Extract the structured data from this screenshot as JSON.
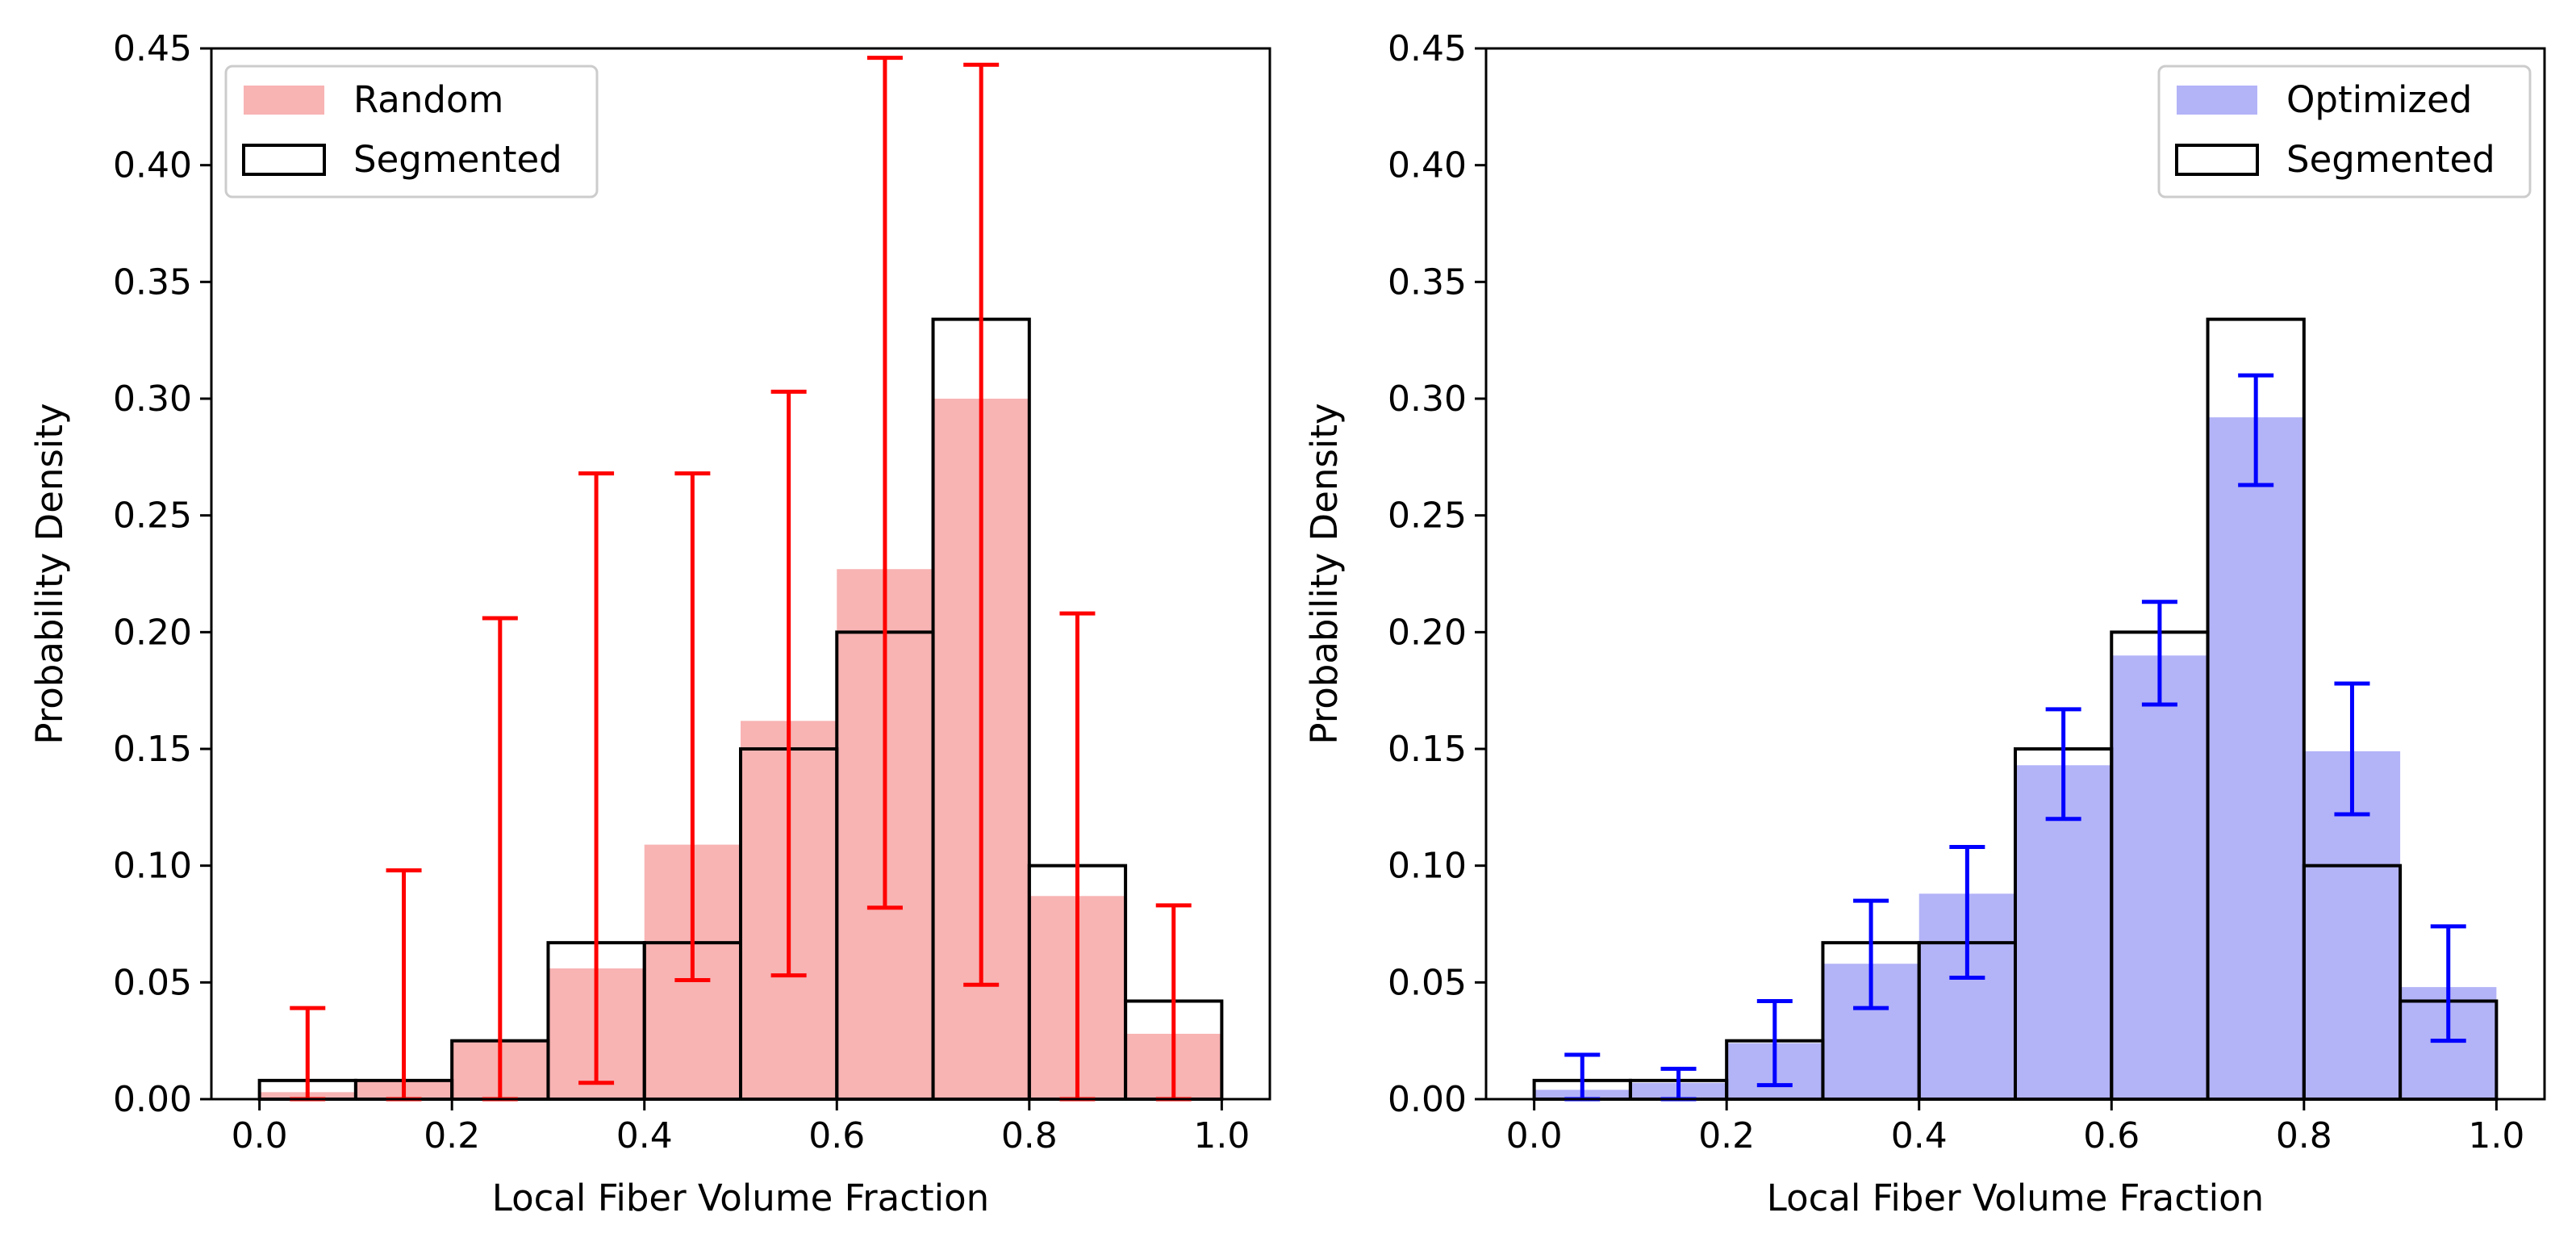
{
  "chart_data": [
    {
      "type": "bar",
      "title": "",
      "xlabel": "Local Fiber Volume Fraction",
      "ylabel": "Probability Density",
      "xlim": [
        -0.05,
        1.05
      ],
      "ylim": [
        0,
        0.45
      ],
      "x_ticks": [
        "0.0",
        "0.2",
        "0.4",
        "0.6",
        "0.8",
        "1.0"
      ],
      "y_ticks": [
        "0.00",
        "0.05",
        "0.10",
        "0.15",
        "0.20",
        "0.25",
        "0.30",
        "0.35",
        "0.40",
        "0.45"
      ],
      "grid": false,
      "legend_position": "top-left",
      "bin_edges": [
        0.0,
        0.1,
        0.2,
        0.3,
        0.4,
        0.5,
        0.6,
        0.7,
        0.8,
        0.9,
        1.0
      ],
      "series": [
        {
          "name": "Random",
          "style": "filled",
          "color": "#f8b3b3",
          "values": [
            0.003,
            0.008,
            0.025,
            0.056,
            0.109,
            0.162,
            0.227,
            0.3,
            0.087,
            0.028
          ],
          "error_color": "#ff0000",
          "error_low": [
            0.0,
            0.0,
            0.0,
            0.007,
            0.051,
            0.053,
            0.082,
            0.049,
            0.0,
            0.0
          ],
          "error_high": [
            0.039,
            0.098,
            0.206,
            0.268,
            0.268,
            0.303,
            0.446,
            0.443,
            0.208,
            0.083
          ]
        },
        {
          "name": "Segmented",
          "style": "outline",
          "color": "#000000",
          "values": [
            0.008,
            0.008,
            0.025,
            0.067,
            0.067,
            0.15,
            0.2,
            0.334,
            0.1,
            0.042
          ]
        }
      ]
    },
    {
      "type": "bar",
      "title": "",
      "xlabel": "Local Fiber Volume Fraction",
      "ylabel": "Probability Density",
      "xlim": [
        -0.05,
        1.05
      ],
      "ylim": [
        0,
        0.45
      ],
      "x_ticks": [
        "0.0",
        "0.2",
        "0.4",
        "0.6",
        "0.8",
        "1.0"
      ],
      "y_ticks": [
        "0.00",
        "0.05",
        "0.10",
        "0.15",
        "0.20",
        "0.25",
        "0.30",
        "0.35",
        "0.40",
        "0.45"
      ],
      "grid": false,
      "legend_position": "top-right",
      "bin_edges": [
        0.0,
        0.1,
        0.2,
        0.3,
        0.4,
        0.5,
        0.6,
        0.7,
        0.8,
        0.9,
        1.0
      ],
      "series": [
        {
          "name": "Optimized",
          "style": "filled",
          "color": "#b3b3f8",
          "values": [
            0.004,
            0.007,
            0.024,
            0.058,
            0.088,
            0.143,
            0.19,
            0.292,
            0.149,
            0.048
          ],
          "error_color": "#0000ff",
          "error_low": [
            0.0,
            0.0,
            0.006,
            0.039,
            0.052,
            0.12,
            0.169,
            0.263,
            0.122,
            0.025
          ],
          "error_high": [
            0.019,
            0.013,
            0.042,
            0.085,
            0.108,
            0.167,
            0.213,
            0.31,
            0.178,
            0.074
          ]
        },
        {
          "name": "Segmented",
          "style": "outline",
          "color": "#000000",
          "values": [
            0.008,
            0.008,
            0.025,
            0.067,
            0.067,
            0.15,
            0.2,
            0.334,
            0.1,
            0.042
          ]
        }
      ]
    }
  ]
}
